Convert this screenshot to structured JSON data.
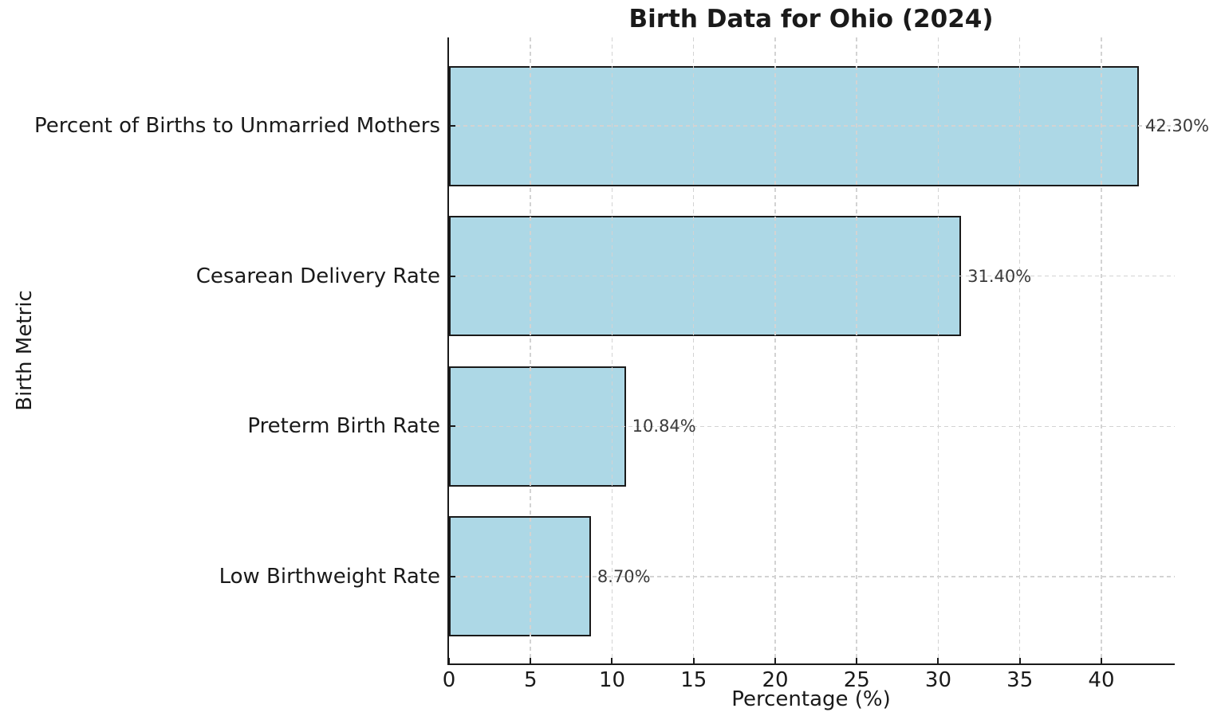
{
  "chart_data": {
    "type": "bar",
    "orientation": "horizontal",
    "title": "Birth Data for Ohio (2024)",
    "xlabel": "Percentage (%)",
    "ylabel": "Birth Metric",
    "categories": [
      "Percent of Births to Unmarried Mothers",
      "Cesarean Delivery Rate",
      "Preterm Birth Rate",
      "Low Birthweight Rate"
    ],
    "values": [
      42.3,
      31.4,
      10.84,
      8.7
    ],
    "value_labels": [
      "42.30%",
      "31.40%",
      "10.84%",
      "8.70%"
    ],
    "xticks": [
      0,
      5,
      10,
      15,
      20,
      25,
      30,
      35,
      40
    ],
    "xlim": [
      0,
      44.5
    ],
    "grid": true,
    "grid_style": "dashed",
    "legend": false,
    "colors": {
      "bar_fill": "#ADD8E6",
      "bar_edge": "#1a1a1a",
      "grid": "#d3d3d3",
      "text": "#1a1a1a",
      "value_text": "#3a3a3a",
      "background": "#ffffff"
    }
  }
}
